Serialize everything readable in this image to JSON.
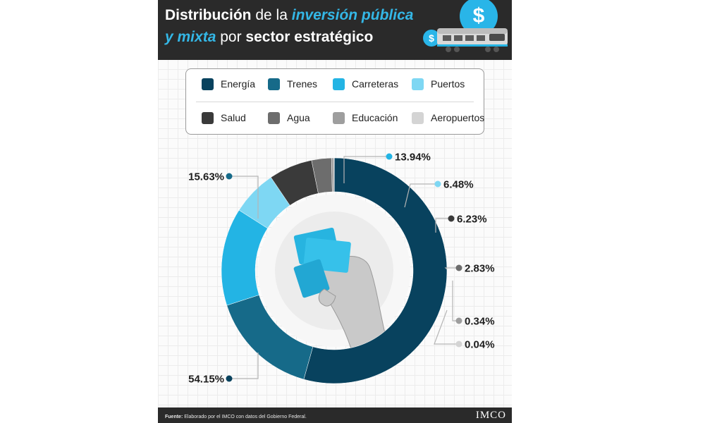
{
  "header": {
    "title_part1": "Distribución",
    "title_part2": " de la ",
    "title_part3": "inversión pública",
    "title_part4": "y mixta",
    "title_part5": " por ",
    "title_part6": "sector estratégico",
    "coin_symbol": "$"
  },
  "colors": {
    "Energía": "#08425e",
    "Trenes": "#166a89",
    "Carreteras": "#23b4e4",
    "Puertos": "#7ed7f3",
    "Salud": "#3a3a3a",
    "Agua": "#6d6d6d",
    "Educación": "#9e9e9e",
    "Aeropuertos": "#d4d4d4"
  },
  "legend": [
    {
      "label": "Energía",
      "color": "#08425e"
    },
    {
      "label": "Trenes",
      "color": "#166a89"
    },
    {
      "label": "Carreteras",
      "color": "#23b4e4"
    },
    {
      "label": "Puertos",
      "color": "#7ed7f3"
    },
    {
      "label": "Salud",
      "color": "#3a3a3a"
    },
    {
      "label": "Agua",
      "color": "#6d6d6d"
    },
    {
      "label": "Educación",
      "color": "#9e9e9e"
    },
    {
      "label": "Aeropuertos",
      "color": "#d4d4d4"
    }
  ],
  "chart_data": {
    "type": "pie",
    "categories": [
      "Energía",
      "Trenes",
      "Carreteras",
      "Puertos",
      "Salud",
      "Agua",
      "Educación",
      "Aeropuertos"
    ],
    "values": [
      54.15,
      15.63,
      13.94,
      6.48,
      6.23,
      2.83,
      0.34,
      0.04
    ],
    "value_labels": [
      "54.15%",
      "15.63%",
      "13.94%",
      "6.48%",
      "6.23%",
      "2.83%",
      "0.34%",
      "0.04%"
    ],
    "donut": true
  },
  "footer": {
    "source_label": "Fuente:",
    "source_text": " Elaborado por el IMCO con datos del Gobierno Federal.",
    "logo": "IMCO"
  }
}
